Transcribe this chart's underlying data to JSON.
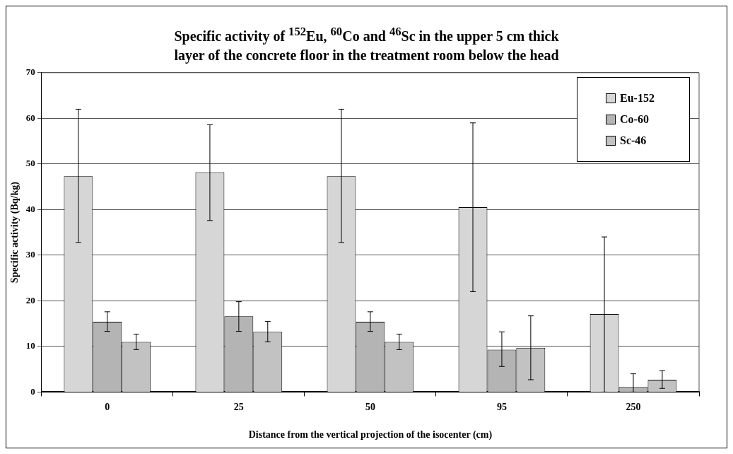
{
  "chart_data": {
    "type": "bar",
    "title": "Specific activity of $^{152}$Eu, $^{60}$Co and $^{46}$Sc in the upper 5 cm thick layer of the concrete floor in the treatment room below the head",
    "xlabel": "Distance from the vertical projection of the isocenter (cm)",
    "ylabel": "Specific activity (Bq/kg)",
    "categories": [
      "0",
      "25",
      "50",
      "95",
      "250"
    ],
    "series": [
      {
        "name": "Eu-152",
        "color": "#d6d6d6",
        "values": [
          47.3,
          48.2,
          47.3,
          40.5,
          17.1
        ],
        "errors": [
          [
            32.8,
            62
          ],
          [
            37.6,
            58.6
          ],
          [
            32.8,
            62
          ],
          [
            22,
            59
          ],
          [
            0,
            34
          ]
        ]
      },
      {
        "name": "Co-60",
        "color": "#b4b4b4",
        "values": [
          15.4,
          16.6,
          15.4,
          9.3,
          1.1
        ],
        "errors": [
          [
            13.3,
            17.6
          ],
          [
            13.3,
            19.8
          ],
          [
            13.3,
            17.6
          ],
          [
            5.6,
            13.2
          ],
          [
            0,
            4
          ]
        ]
      },
      {
        "name": "Sc-46",
        "color": "#c2c2c2",
        "values": [
          11,
          13.2,
          11,
          9.7,
          2.7
        ],
        "errors": [
          [
            9.3,
            12.7
          ],
          [
            11,
            15.5
          ],
          [
            9.3,
            12.7
          ],
          [
            2.7,
            16.7
          ],
          [
            0.8,
            4.7
          ]
        ]
      }
    ],
    "ylim": [
      0,
      70
    ],
    "yticks": [
      0,
      10,
      20,
      30,
      40,
      50,
      60,
      70
    ],
    "grid": "y",
    "legend": "top right"
  }
}
